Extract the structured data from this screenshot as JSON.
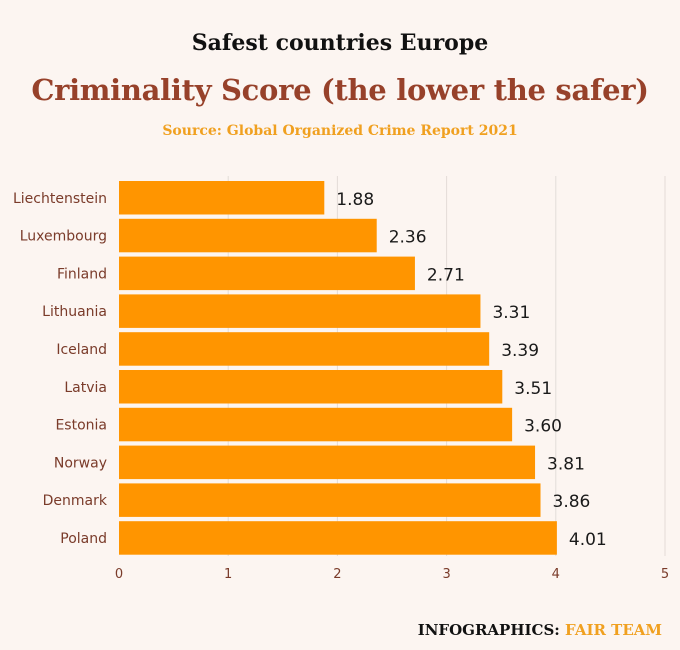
{
  "header": {
    "title": "Safest countries Europe",
    "subtitle": "Criminality Score (the lower the safer)",
    "source": "Source: Global Organized Crime Report 2021"
  },
  "footer": {
    "label": "INFOGRAPHICS: ",
    "brand": "FAIR TEAM"
  },
  "colors": {
    "bar": "#ff9500",
    "subtitle": "#97412a",
    "source": "#f0a020",
    "axis_text": "#7a3b2a",
    "grid": "#e3dcd8"
  },
  "chart_data": {
    "type": "bar",
    "orientation": "horizontal",
    "categories": [
      "Liechtenstein",
      "Luxembourg",
      "Finland",
      "Lithuania",
      "Iceland",
      "Latvia",
      "Estonia",
      "Norway",
      "Denmark",
      "Poland"
    ],
    "values": [
      1.88,
      2.36,
      2.71,
      3.31,
      3.39,
      3.51,
      3.6,
      3.81,
      3.86,
      4.01
    ],
    "value_labels": [
      "1.88",
      "2.36",
      "2.71",
      "3.31",
      "3.39",
      "3.51",
      "3.60",
      "3.81",
      "3.86",
      "4.01"
    ],
    "xlim": [
      0,
      5
    ],
    "xticks": [
      "0",
      "1",
      "2",
      "3",
      "4",
      "5"
    ],
    "grid": true,
    "legend": "none"
  }
}
